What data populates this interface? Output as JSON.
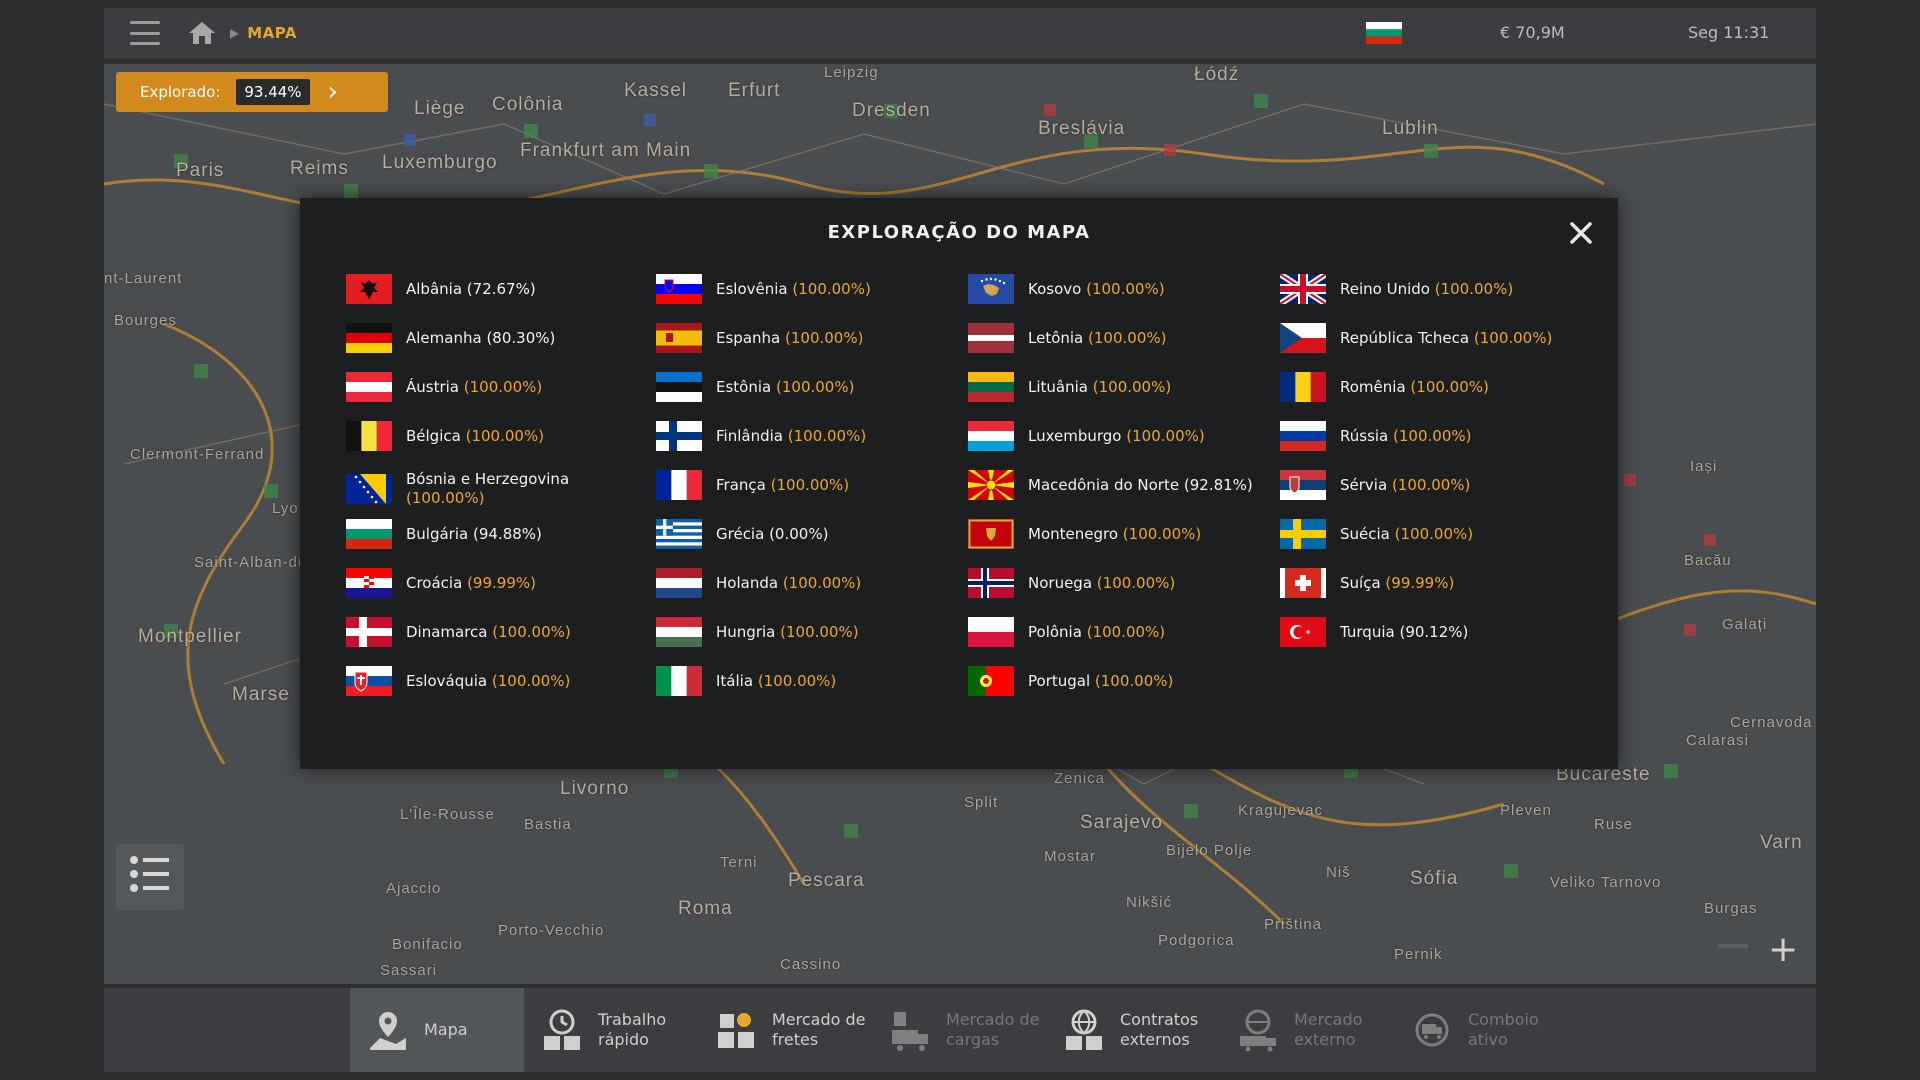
{
  "topbar": {
    "breadcrumb": "MAPA",
    "money": "€ 70,9M",
    "clock": "Seg 11:31"
  },
  "explored": {
    "label": "Explorado:",
    "value": "93.44%"
  },
  "map_cities": [
    "Kassel",
    "Erfurt",
    "Leipzig",
    "Dresden",
    "Łódź",
    "Liège",
    "Colônia",
    "Breslávia",
    "Lublin",
    "Paris",
    "Reims",
    "Luxemburgo",
    "Frankfurt am Main",
    "Bourges",
    "Clermont-Ferrand",
    "Saint-Alban-du",
    "Montpellier",
    "Marse",
    "Iași",
    "Bacău",
    "Galați",
    "Cernavoda",
    "Calarasi",
    "Bucareste",
    "Varn",
    "Livorno",
    "L'Île-Rousse",
    "Bastia",
    "Ajaccio",
    "Bonifacio",
    "Porto-Vecchio",
    "Roma",
    "Terni",
    "Pescara",
    "Cassino",
    "Zenica",
    "Sarajevo",
    "Kragujevac",
    "Bijelo Polje",
    "Nikšić",
    "Podgorica",
    "Priština",
    "Niš",
    "Sófia",
    "Pernik",
    "Pleven",
    "Ruse",
    "Veliko Tarnovo",
    "Burgas",
    "Split",
    "Mostar",
    "Lyo",
    "nt-Laurent",
    "Sassari"
  ],
  "modal": {
    "title": "EXPLORAÇÃO DO MAPA",
    "columns": [
      [
        {
          "name": "Albânia",
          "pct": "(72.67%)",
          "flag": "albania"
        },
        {
          "name": "Alemanha",
          "pct": "(80.30%)",
          "flag": "germany"
        },
        {
          "name": "Áustria",
          "pct": "(100.00%)",
          "flag": "austria"
        },
        {
          "name": "Bélgica",
          "pct": "(100.00%)",
          "flag": "belgium"
        },
        {
          "name": "Bósnia e Herzegovina",
          "pct": "(100.00%)",
          "flag": "bosnia"
        },
        {
          "name": "Bulgária",
          "pct": "(94.88%)",
          "flag": "bulgaria"
        },
        {
          "name": "Croácia",
          "pct": "(99.99%)",
          "flag": "croatia"
        },
        {
          "name": "Dinamarca",
          "pct": "(100.00%)",
          "flag": "denmark"
        },
        {
          "name": "Eslováquia",
          "pct": "(100.00%)",
          "flag": "slovakia"
        }
      ],
      [
        {
          "name": "Eslovênia",
          "pct": "(100.00%)",
          "flag": "slovenia"
        },
        {
          "name": "Espanha",
          "pct": "(100.00%)",
          "flag": "spain"
        },
        {
          "name": "Estônia",
          "pct": "(100.00%)",
          "flag": "estonia"
        },
        {
          "name": "Finlândia",
          "pct": "(100.00%)",
          "flag": "finland"
        },
        {
          "name": "França",
          "pct": "(100.00%)",
          "flag": "france"
        },
        {
          "name": "Grécia",
          "pct": "(0.00%)",
          "flag": "greece"
        },
        {
          "name": "Holanda",
          "pct": "(100.00%)",
          "flag": "netherlands"
        },
        {
          "name": "Hungria",
          "pct": "(100.00%)",
          "flag": "hungary"
        },
        {
          "name": "Itália",
          "pct": "(100.00%)",
          "flag": "italy"
        }
      ],
      [
        {
          "name": "Kosovo",
          "pct": "(100.00%)",
          "flag": "kosovo"
        },
        {
          "name": "Letônia",
          "pct": "(100.00%)",
          "flag": "latvia"
        },
        {
          "name": "Lituânia",
          "pct": "(100.00%)",
          "flag": "lithuania"
        },
        {
          "name": "Luxemburgo",
          "pct": "(100.00%)",
          "flag": "luxembourg"
        },
        {
          "name": "Macedônia do Norte",
          "pct": "(92.81%)",
          "flag": "north-macedonia"
        },
        {
          "name": "Montenegro",
          "pct": "(100.00%)",
          "flag": "montenegro"
        },
        {
          "name": "Noruega",
          "pct": "(100.00%)",
          "flag": "norway"
        },
        {
          "name": "Polônia",
          "pct": "(100.00%)",
          "flag": "poland"
        },
        {
          "name": "Portugal",
          "pct": "(100.00%)",
          "flag": "portugal"
        }
      ],
      [
        {
          "name": "Reino Unido",
          "pct": "(100.00%)",
          "flag": "uk"
        },
        {
          "name": "República Tcheca",
          "pct": "(100.00%)",
          "flag": "czechia"
        },
        {
          "name": "Romênia",
          "pct": "(100.00%)",
          "flag": "romania"
        },
        {
          "name": "Rússia",
          "pct": "(100.00%)",
          "flag": "russia"
        },
        {
          "name": "Sérvia",
          "pct": "(100.00%)",
          "flag": "serbia"
        },
        {
          "name": "Suécia",
          "pct": "(100.00%)",
          "flag": "sweden"
        },
        {
          "name": "Suíça",
          "pct": "(99.99%)",
          "flag": "switzerland"
        },
        {
          "name": "Turquia",
          "pct": "(90.12%)",
          "flag": "turkey"
        }
      ]
    ]
  },
  "bottom_tabs": [
    {
      "label": "Mapa",
      "icon": "map-pin-icon",
      "state": "active"
    },
    {
      "label": "Trabalho rápido",
      "icon": "clock-boxes-icon",
      "state": "enabled"
    },
    {
      "label": "Mercado de fretes",
      "icon": "cargo-boxes-icon",
      "state": "enabled"
    },
    {
      "label": "Mercado de cargas",
      "icon": "truck-cargo-icon",
      "state": "disabled"
    },
    {
      "label": "Contratos externos",
      "icon": "globe-boxes-icon",
      "state": "enabled"
    },
    {
      "label": "Mercado externo",
      "icon": "globe-truck-icon",
      "state": "disabled"
    },
    {
      "label": "Comboio ativo",
      "icon": "convoy-icon",
      "state": "disabled"
    }
  ],
  "colors": {
    "accent": "#f0a52b",
    "badge": "#d28a1f",
    "modal_bg": "#1d1e20",
    "bar_bg": "#3b3d40",
    "map_bg": "#4a4d50"
  }
}
